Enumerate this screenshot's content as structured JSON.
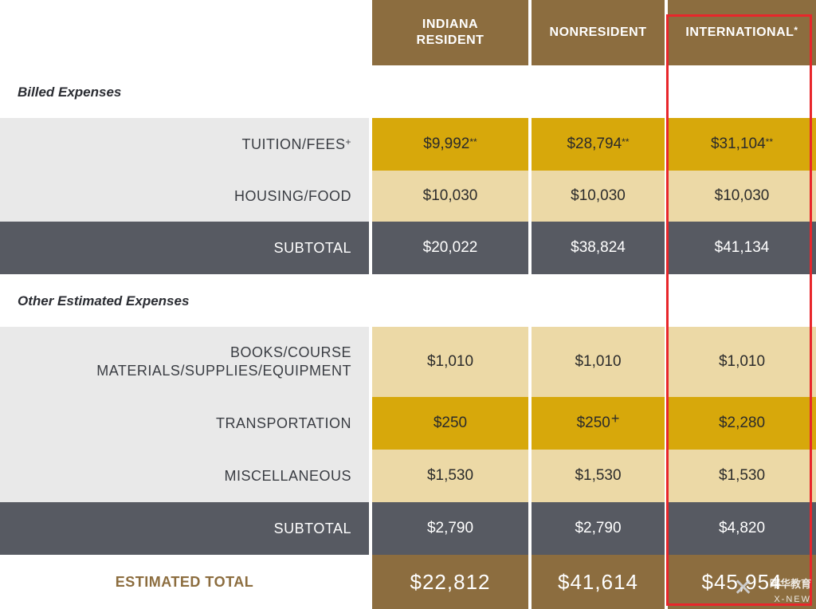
{
  "header": {
    "columns": [
      "INDIANA RESIDENT",
      "NONRESIDENT",
      "INTERNATIONAL"
    ],
    "international_marker": "*"
  },
  "sections": {
    "billed": "Billed Expenses",
    "other": "Other Estimated Expenses"
  },
  "rows": {
    "tuition": {
      "label": "TUITION/FEES",
      "label_marker": "+",
      "values": [
        "$9,992",
        "$28,794",
        "$31,104"
      ],
      "value_marker": "**"
    },
    "housing": {
      "label": "HOUSING/FOOD",
      "values": [
        "$10,030",
        "$10,030",
        "$10,030"
      ]
    },
    "subtotal1": {
      "label": "SUBTOTAL",
      "values": [
        "$20,022",
        "$38,824",
        "$41,134"
      ]
    },
    "books": {
      "label_line1": "BOOKS/COURSE",
      "label_line2": "MATERIALS/SUPPLIES/EQUIPMENT",
      "values": [
        "$1,010",
        "$1,010",
        "$1,010"
      ]
    },
    "transport": {
      "label": "TRANSPORTATION",
      "values": [
        "$250",
        "$250",
        "$2,280"
      ],
      "nonresident_marker": "+"
    },
    "misc": {
      "label": "MISCELLANEOUS",
      "values": [
        "$1,530",
        "$1,530",
        "$1,530"
      ]
    },
    "subtotal2": {
      "label": "SUBTOTAL",
      "values": [
        "$2,790",
        "$2,790",
        "$4,820"
      ]
    },
    "total": {
      "label": "ESTIMATED TOTAL",
      "values": [
        "$22,812",
        "$41,614",
        "$45,954"
      ]
    }
  },
  "watermark": {
    "cn": "曙华教育",
    "en": "X-NEW"
  },
  "colors": {
    "header_bronze": "#8c6d3f",
    "gold": "#d7a80b",
    "light_gold": "#ecd9a6",
    "dark_slate": "#575a62",
    "label_gray": "#e9e9e9",
    "highlight_red": "#e8262b"
  }
}
